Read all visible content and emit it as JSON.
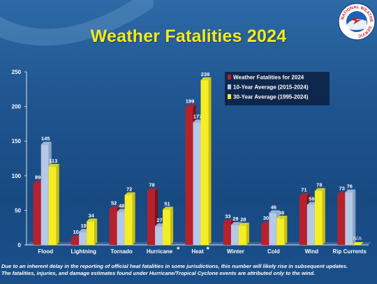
{
  "title": "Weather Fatalities 2024",
  "logo": {
    "ring_text_top": "NATIONAL WEATHER",
    "ring_text_right": "SERVICE"
  },
  "colors": {
    "title": "#f4ea1c",
    "series_2024": "#b7212c",
    "series_10yr": "#b5c8e6",
    "series_30yr": "#f6ee24",
    "background": "#1f5590"
  },
  "chart_data": {
    "type": "bar",
    "title": "Weather Fatalities 2024",
    "categories": [
      "Flood",
      "Lightning",
      "Tornado",
      "Hurricane",
      "Heat",
      "Winter",
      "Cold",
      "Wind",
      "Rip Currents"
    ],
    "category_markers": [
      "",
      "",
      "",
      "*",
      "*",
      "",
      "",
      "",
      ""
    ],
    "series": [
      {
        "name": "Weather Fatalities for 2024",
        "values": [
          89,
          10,
          52,
          78,
          199,
          33,
          30,
          71,
          73
        ],
        "labels": [
          "89",
          "10",
          "52",
          "78",
          "199",
          "33",
          "30",
          "71",
          "73"
        ]
      },
      {
        "name": "10-Year Average (2015-2024)",
        "values": [
          145,
          19,
          48,
          27,
          177,
          29,
          46,
          58,
          76
        ],
        "labels": [
          "145",
          "19",
          "48",
          "27",
          "177",
          "29",
          "46",
          "58",
          "76"
        ]
      },
      {
        "name": "30-Year Average (1995-2024)",
        "values": [
          113,
          34,
          72,
          51,
          238,
          28,
          38,
          78,
          0
        ],
        "labels": [
          "113",
          "34",
          "72",
          "51",
          "238",
          "28",
          "38",
          "78",
          "N/A"
        ]
      }
    ],
    "ylim": [
      0,
      250
    ],
    "yticks": [
      0,
      50,
      100,
      150,
      200,
      250
    ],
    "grid": false,
    "legend_position": "top-right"
  },
  "footnotes": [
    "Due to an inherent delay in the reporting of official heat fatalities in some jurisdictions, this number will likely rise in subsequent updates.",
    "The fatalities, injuries, and damage estimates found under Hurricane/Tropical Cyclone events are attributed only to the wind."
  ]
}
